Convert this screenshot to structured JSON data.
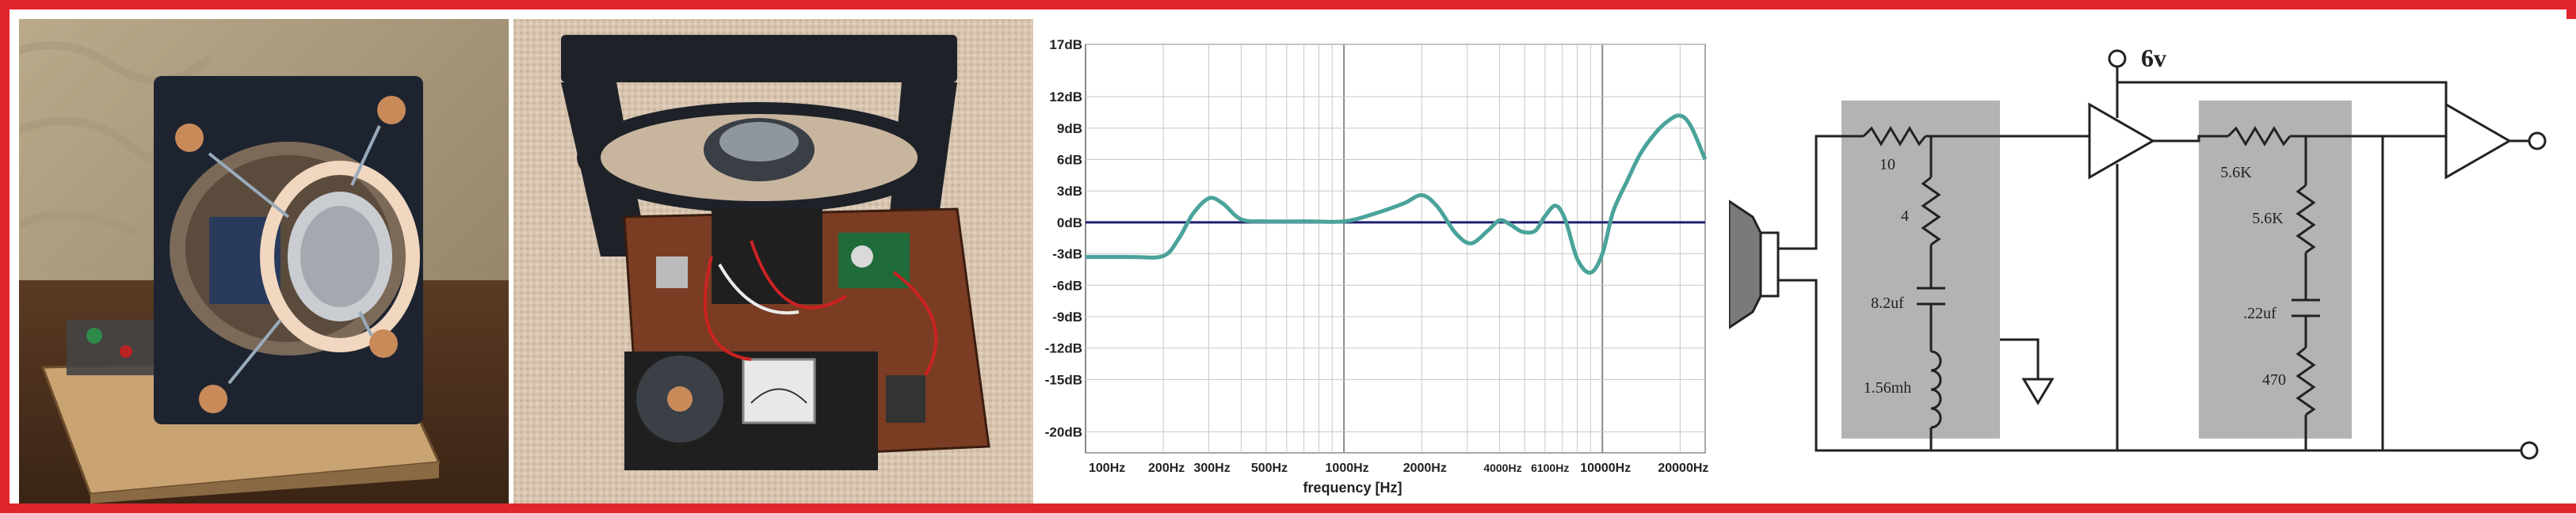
{
  "chart_data": {
    "type": "line",
    "xlabel": "frequency [Hz]",
    "ylabel": "",
    "x_scale": "log",
    "xlim": [
      100,
      25000
    ],
    "ylim": [
      -22,
      17
    ],
    "y_ticks": [
      "17dB",
      "12dB",
      "9dB",
      "6dB",
      "3dB",
      "0dB",
      "-3dB",
      "-6dB",
      "-9dB",
      "-12dB",
      "-15dB",
      "-20dB"
    ],
    "y_tick_values": [
      17,
      12,
      9,
      6,
      3,
      0,
      -3,
      -6,
      -9,
      -12,
      -15,
      -20
    ],
    "x_ticks": [
      "100Hz",
      "200Hz",
      "300Hz",
      "500Hz",
      "1000Hz",
      "2000Hz",
      "4000Hz",
      "6100Hz",
      "10000Hz",
      "20000Hz"
    ],
    "x_tick_values": [
      100,
      200,
      300,
      500,
      1000,
      2000,
      4000,
      6100,
      10000,
      20000
    ],
    "grid": true,
    "colors": {
      "curve": "#4aa39a",
      "zero_line": "#1f1f6e",
      "grid": "#c8c8c8"
    },
    "series": [
      {
        "x": [
          100,
          150,
          200,
          230,
          260,
          300,
          340,
          400,
          500,
          700,
          1000,
          1300,
          1700,
          2000,
          2300,
          2700,
          3100,
          3600,
          4000,
          4400,
          4900,
          5500,
          6000,
          6600,
          7200,
          8000,
          9000,
          10000,
          11000,
          12500,
          14000,
          16000,
          18000,
          20000,
          22000,
          25000
        ],
        "y": [
          -3.3,
          -3.3,
          -3.2,
          -1.5,
          0.8,
          2.3,
          1.8,
          0.3,
          0.1,
          0.1,
          0.1,
          0.8,
          1.8,
          2.6,
          1.5,
          -1.0,
          -2.0,
          -0.8,
          0.2,
          -0.2,
          -0.9,
          -0.8,
          0.6,
          1.6,
          0.2,
          -3.5,
          -4.8,
          -3.0,
          1.0,
          4.0,
          6.5,
          8.5,
          9.7,
          10.2,
          9.2,
          6.0
        ]
      }
    ]
  },
  "schematic": {
    "supply": "6v",
    "labels": [
      "10",
      "4",
      "8.2uf",
      "1.56mh",
      "5.6K",
      "5.6K",
      ".22uf",
      "470"
    ]
  },
  "photos": {
    "photo1": {
      "subject": "speaker-test-rig-front-photo"
    },
    "photo2": {
      "subject": "speaker-test-rig-top-photo"
    }
  }
}
